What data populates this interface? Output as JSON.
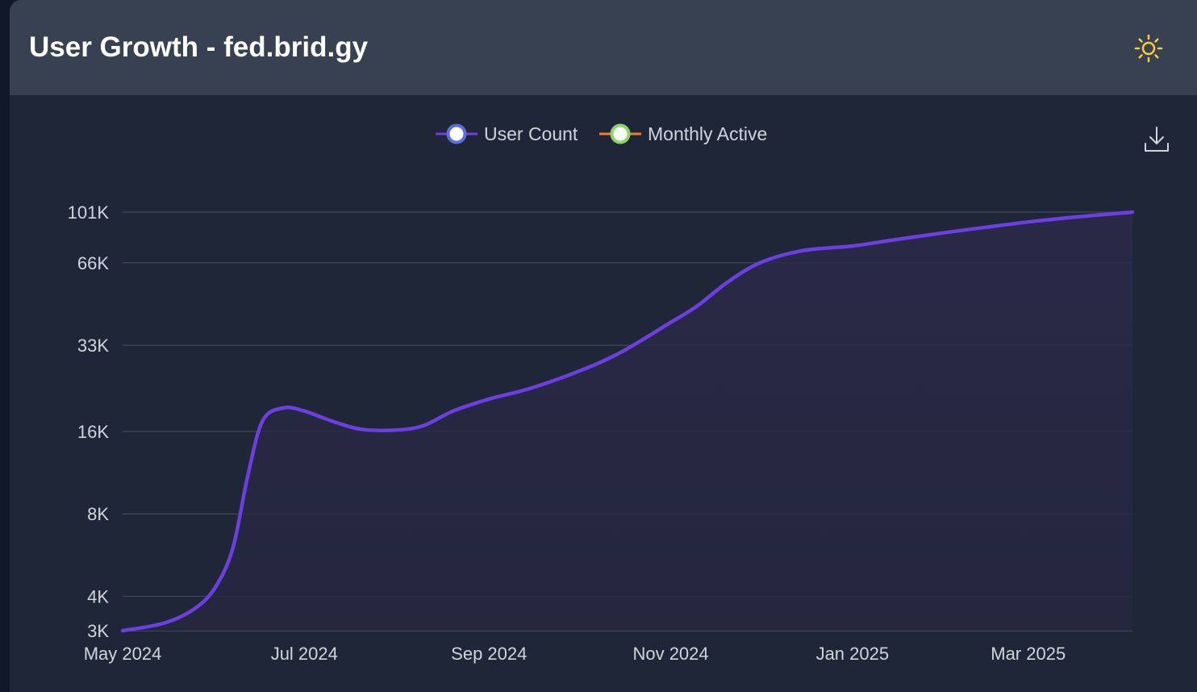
{
  "header": {
    "title": "User Growth - fed.brid.gy",
    "theme_icon": "sun-icon"
  },
  "toolbar": {
    "download_icon": "download-icon"
  },
  "colors": {
    "page_bg": "#111827",
    "card_bg": "#1f2637",
    "header_bg": "#374151",
    "user_count": "#6d3fe0",
    "user_count_marker": "#5b6ee1",
    "monthly_active": "#f07f2c",
    "monthly_active_marker": "#8fd36b",
    "sun": "#f5cf3b",
    "grid": "#3b4354",
    "text": "#d1d5db"
  },
  "chart_data": {
    "type": "area",
    "scale": "log",
    "legend_position": "top-center",
    "grid": true,
    "series": [
      {
        "name": "User Count",
        "points": [
          [
            "2024-05-01",
            3000
          ],
          [
            "2024-05-15",
            3200
          ],
          [
            "2024-05-25",
            3600
          ],
          [
            "2024-06-01",
            4300
          ],
          [
            "2024-06-07",
            6000
          ],
          [
            "2024-06-12",
            11000
          ],
          [
            "2024-06-17",
            17500
          ],
          [
            "2024-06-24",
            19500
          ],
          [
            "2024-07-01",
            19000
          ],
          [
            "2024-07-10",
            17500
          ],
          [
            "2024-07-20",
            16300
          ],
          [
            "2024-08-01",
            16200
          ],
          [
            "2024-08-10",
            16800
          ],
          [
            "2024-08-20",
            19000
          ],
          [
            "2024-09-01",
            21000
          ],
          [
            "2024-09-15",
            23000
          ],
          [
            "2024-10-01",
            26500
          ],
          [
            "2024-10-15",
            31000
          ],
          [
            "2024-11-01",
            40000
          ],
          [
            "2024-11-10",
            46000
          ],
          [
            "2024-11-20",
            56000
          ],
          [
            "2024-12-01",
            66000
          ],
          [
            "2024-12-15",
            73000
          ],
          [
            "2025-01-01",
            76000
          ],
          [
            "2025-01-15",
            80000
          ],
          [
            "2025-02-01",
            85000
          ],
          [
            "2025-02-15",
            89000
          ],
          [
            "2025-03-01",
            93000
          ],
          [
            "2025-03-15",
            96500
          ],
          [
            "2025-04-05",
            101000
          ]
        ]
      },
      {
        "name": "Monthly Active",
        "points": []
      }
    ],
    "y_ticks": [
      {
        "value": 101000,
        "label": "101K"
      },
      {
        "value": 66000,
        "label": "66K"
      },
      {
        "value": 33000,
        "label": "33K"
      },
      {
        "value": 16000,
        "label": "16K"
      },
      {
        "value": 8000,
        "label": "8K"
      },
      {
        "value": 4000,
        "label": "4K"
      },
      {
        "value": 3000,
        "label": "3K"
      }
    ],
    "x_ticks": [
      {
        "date": "2024-05-01",
        "label": "May 2024"
      },
      {
        "date": "2024-07-01",
        "label": "Jul 2024"
      },
      {
        "date": "2024-09-01",
        "label": "Sep 2024"
      },
      {
        "date": "2024-11-01",
        "label": "Nov 2024"
      },
      {
        "date": "2025-01-01",
        "label": "Jan 2025"
      },
      {
        "date": "2025-03-01",
        "label": "Mar 2025"
      }
    ],
    "xlim": [
      "2024-05-01",
      "2025-04-05"
    ],
    "ylim": [
      3000,
      101000
    ]
  }
}
